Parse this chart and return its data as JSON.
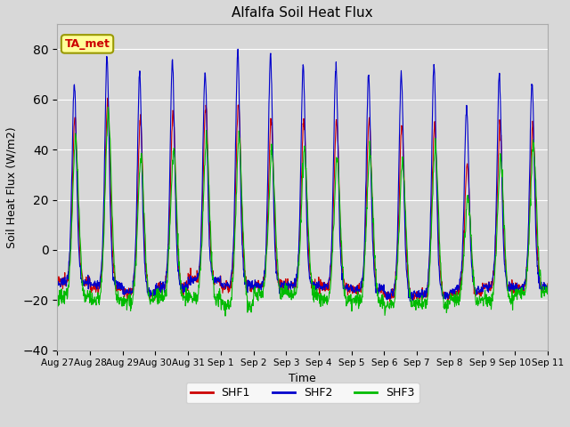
{
  "title": "Alfalfa Soil Heat Flux",
  "ylabel": "Soil Heat Flux (W/m2)",
  "xlabel": "Time",
  "ylim": [
    -40,
    90
  ],
  "yticks": [
    -40,
    -20,
    0,
    20,
    40,
    60,
    80
  ],
  "background_color": "#d8d8d8",
  "shf1_color": "#cc0000",
  "shf2_color": "#0000cc",
  "shf3_color": "#00bb00",
  "annotation_text": "TA_met",
  "annotation_color": "#cc0000",
  "annotation_bg": "#ffff99",
  "n_days": 15,
  "points_per_day": 96,
  "shf2_peaks": [
    67,
    77,
    71,
    76,
    71,
    79,
    78,
    74,
    74,
    71,
    71,
    74,
    57,
    70,
    67
  ],
  "shf1_peaks": [
    53,
    60,
    53,
    55,
    58,
    59,
    52,
    52,
    52,
    52,
    50,
    50,
    35,
    49,
    50
  ],
  "shf3_peaks": [
    46,
    56,
    38,
    40,
    45,
    46,
    40,
    40,
    37,
    40,
    37,
    43,
    22,
    37,
    43
  ],
  "shf1_nights": [
    -13,
    -15,
    -17,
    -15,
    -12,
    -15,
    -14,
    -14,
    -15,
    -16,
    -18,
    -18,
    -17,
    -15,
    -15
  ],
  "shf2_nights": [
    -13,
    -14,
    -17,
    -15,
    -12,
    -14,
    -14,
    -14,
    -15,
    -16,
    -18,
    -18,
    -16,
    -15,
    -15
  ],
  "shf3_nights": [
    -19,
    -20,
    -20,
    -19,
    -19,
    -22,
    -17,
    -17,
    -20,
    -20,
    -22,
    -22,
    -20,
    -20,
    -17
  ],
  "day_labels": [
    "Aug 27",
    "Aug 28",
    "Aug 29",
    "Aug 30",
    "Aug 31",
    "Sep 1",
    "Sep 2",
    "Sep 3",
    "Sep 4",
    "Sep 5",
    "Sep 6",
    "Sep 7",
    "Sep 8",
    "Sep 9",
    "Sep 10",
    "Sep 11"
  ]
}
